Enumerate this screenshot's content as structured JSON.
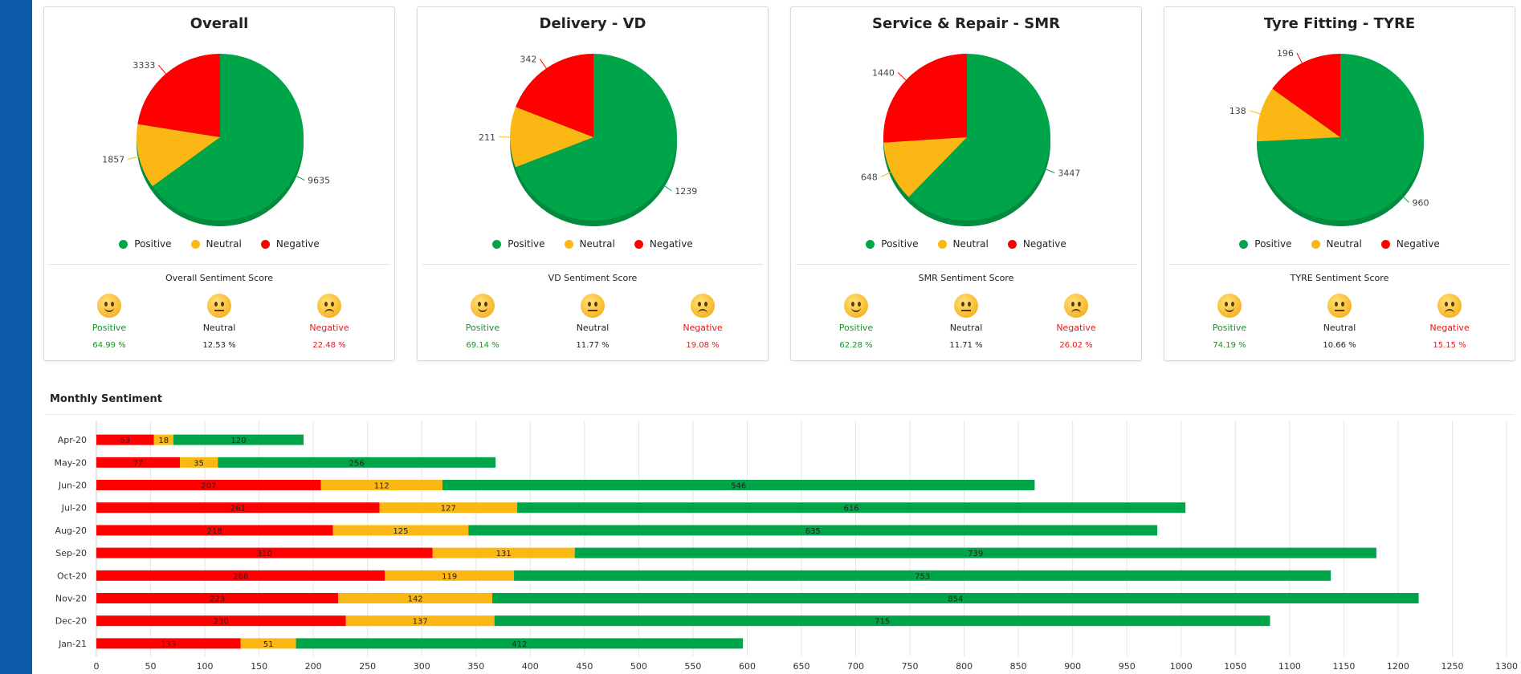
{
  "colors": {
    "positive": "#00a54a",
    "neutral": "#fbb714",
    "negative": "#fe0000",
    "sidebar": "#0b5aa8"
  },
  "legend": {
    "positive": "Positive",
    "neutral": "Neutral",
    "negative": "Negative"
  },
  "cards": [
    {
      "title": "Overall",
      "pie": {
        "positive": 9635,
        "neutral": 1857,
        "negative": 3333
      },
      "score_title": "Overall Sentiment Score",
      "scores": {
        "positive_label": "Positive",
        "positive": "64.99 %",
        "neutral_label": "Neutral",
        "neutral": "12.53 %",
        "negative_label": "Negative",
        "negative": "22.48 %"
      }
    },
    {
      "title": "Delivery - VD",
      "pie": {
        "positive": 1239,
        "neutral": 211,
        "negative": 342
      },
      "score_title": "VD Sentiment Score",
      "scores": {
        "positive_label": "Positive",
        "positive": "69.14 %",
        "neutral_label": "Neutral",
        "neutral": "11.77 %",
        "negative_label": "Negative",
        "negative": "19.08 %"
      }
    },
    {
      "title": "Service & Repair - SMR",
      "pie": {
        "positive": 3447,
        "neutral": 648,
        "negative": 1440
      },
      "score_title": "SMR Sentiment Score",
      "scores": {
        "positive_label": "Positive",
        "positive": "62.28 %",
        "neutral_label": "Neutral",
        "neutral": "11.71 %",
        "negative_label": "Negative",
        "negative": "26.02 %"
      }
    },
    {
      "title": "Tyre Fitting - TYRE",
      "pie": {
        "positive": 960,
        "neutral": 138,
        "negative": 196
      },
      "score_title": "TYRE Sentiment Score",
      "scores": {
        "positive_label": "Positive",
        "positive": "74.19 %",
        "neutral_label": "Neutral",
        "neutral": "10.66 %",
        "negative_label": "Negative",
        "negative": "15.15 %"
      }
    }
  ],
  "monthly": {
    "title": "Monthly Sentiment",
    "chart_data": {
      "type": "bar",
      "orientation": "horizontal",
      "stacked": true,
      "categories": [
        "Apr-20",
        "May-20",
        "Jun-20",
        "Jul-20",
        "Aug-20",
        "Sep-20",
        "Oct-20",
        "Nov-20",
        "Dec-20",
        "Jan-21"
      ],
      "series": [
        {
          "name": "Negative",
          "values": [
            53,
            77,
            207,
            261,
            218,
            310,
            266,
            223,
            230,
            133
          ]
        },
        {
          "name": "Neutral",
          "values": [
            18,
            35,
            112,
            127,
            125,
            131,
            119,
            142,
            137,
            51
          ]
        },
        {
          "name": "Positive",
          "values": [
            120,
            256,
            546,
            616,
            635,
            739,
            753,
            854,
            715,
            412
          ]
        }
      ],
      "xlim": [
        0,
        1300
      ],
      "xticks": [
        0,
        50,
        100,
        150,
        200,
        250,
        300,
        350,
        400,
        450,
        500,
        550,
        600,
        650,
        700,
        750,
        800,
        850,
        900,
        950,
        1000,
        1050,
        1100,
        1150,
        1200,
        1250,
        1300
      ],
      "grid": true,
      "title": "",
      "xlabel": "",
      "ylabel": ""
    }
  }
}
